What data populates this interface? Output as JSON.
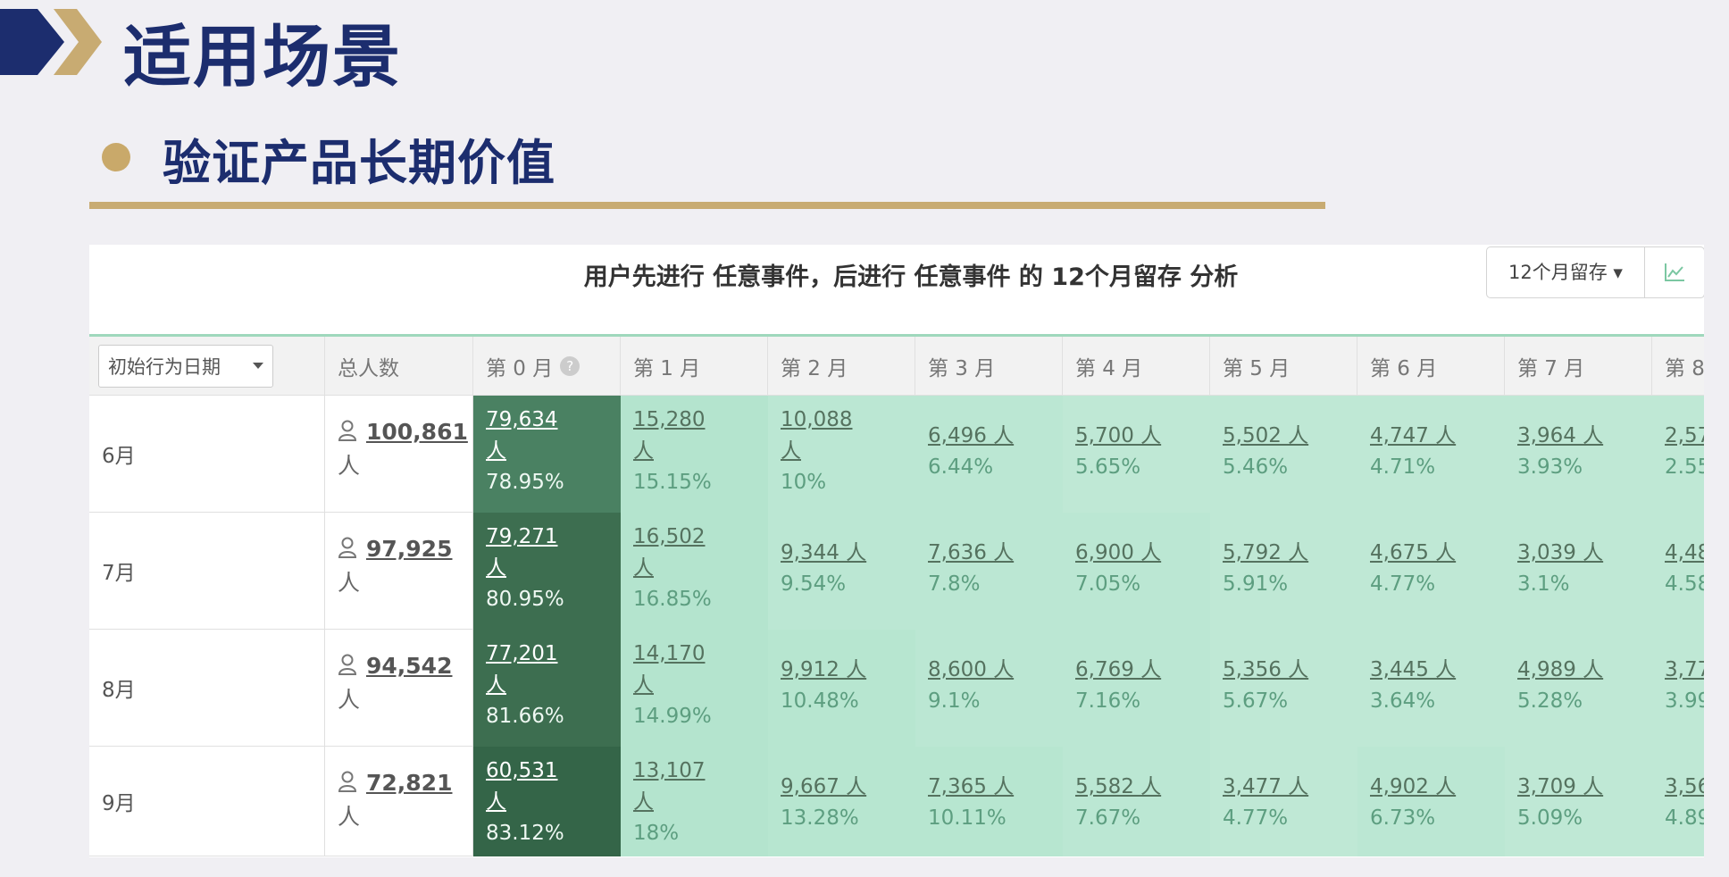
{
  "slide": {
    "title": "适用场景",
    "subtitle": "验证产品长期价值"
  },
  "colors": {
    "navy": "#1c2d6e",
    "gold": "#c8ab72",
    "green_dark": "#3d6e4f",
    "green_light": "#b4e4cf"
  },
  "panel": {
    "title": "用户先进行 任意事件，后进行 任意事件 的 12个月留存 分析",
    "range_label": "12个月留存 ▾",
    "chart_icon": "line-chart-icon",
    "date_select": "初始行为日期",
    "help_icon": "?"
  },
  "table": {
    "headers": [
      "总人数",
      "第 0 月",
      "第 1 月",
      "第 2 月",
      "第 3 月",
      "第 4 月",
      "第 5 月",
      "第 6 月",
      "第 7 月",
      "第 8"
    ],
    "rows": [
      {
        "label": "6月",
        "total": "100,861",
        "unit": "人",
        "cells": [
          {
            "n": "79,634",
            "p": "78.95%",
            "r": 0.7895
          },
          {
            "n": "15,280",
            "p": "15.15%",
            "r": 0.1515
          },
          {
            "n": "10,088",
            "p": "10%",
            "r": 0.1
          },
          {
            "n": "6,496 人",
            "p": "6.44%",
            "r": 0.0644
          },
          {
            "n": "5,700 人",
            "p": "5.65%",
            "r": 0.0565
          },
          {
            "n": "5,502 人",
            "p": "5.46%",
            "r": 0.0546
          },
          {
            "n": "4,747 人",
            "p": "4.71%",
            "r": 0.0471
          },
          {
            "n": "3,964 人",
            "p": "3.93%",
            "r": 0.0393
          },
          {
            "n": "2,57",
            "p": "2.55",
            "r": 0.0255
          }
        ]
      },
      {
        "label": "7月",
        "total": "97,925",
        "unit": "人",
        "cells": [
          {
            "n": "79,271",
            "p": "80.95%",
            "r": 0.8095
          },
          {
            "n": "16,502",
            "p": "16.85%",
            "r": 0.1685
          },
          {
            "n": "9,344 人",
            "p": "9.54%",
            "r": 0.0954
          },
          {
            "n": "7,636 人",
            "p": "7.8%",
            "r": 0.078
          },
          {
            "n": "6,900 人",
            "p": "7.05%",
            "r": 0.0705
          },
          {
            "n": "5,792 人",
            "p": "5.91%",
            "r": 0.0591
          },
          {
            "n": "4,675 人",
            "p": "4.77%",
            "r": 0.0477
          },
          {
            "n": "3,039 人",
            "p": "3.1%",
            "r": 0.031
          },
          {
            "n": "4,48",
            "p": "4.58",
            "r": 0.0458
          }
        ]
      },
      {
        "label": "8月",
        "total": "94,542",
        "unit": "人",
        "cells": [
          {
            "n": "77,201",
            "p": "81.66%",
            "r": 0.8166
          },
          {
            "n": "14,170",
            "p": "14.99%",
            "r": 0.1499
          },
          {
            "n": "9,912 人",
            "p": "10.48%",
            "r": 0.1048
          },
          {
            "n": "8,600 人",
            "p": "9.1%",
            "r": 0.091
          },
          {
            "n": "6,769 人",
            "p": "7.16%",
            "r": 0.0716
          },
          {
            "n": "5,356 人",
            "p": "5.67%",
            "r": 0.0567
          },
          {
            "n": "3,445 人",
            "p": "3.64%",
            "r": 0.0364
          },
          {
            "n": "4,989 人",
            "p": "5.28%",
            "r": 0.0528
          },
          {
            "n": "3,77",
            "p": "3.99",
            "r": 0.0399
          }
        ]
      },
      {
        "label": "9月",
        "total": "72,821",
        "unit": "人",
        "cells": [
          {
            "n": "60,531",
            "p": "83.12%",
            "r": 0.8312
          },
          {
            "n": "13,107",
            "p": "18%",
            "r": 0.18
          },
          {
            "n": "9,667 人",
            "p": "13.28%",
            "r": 0.1328
          },
          {
            "n": "7,365 人",
            "p": "10.11%",
            "r": 0.1011
          },
          {
            "n": "5,582 人",
            "p": "7.67%",
            "r": 0.0767
          },
          {
            "n": "3,477 人",
            "p": "4.77%",
            "r": 0.0477
          },
          {
            "n": "4,902 人",
            "p": "6.73%",
            "r": 0.0673
          },
          {
            "n": "3,709 人",
            "p": "5.09%",
            "r": 0.0509
          },
          {
            "n": "3,56",
            "p": "4.89",
            "r": 0.0489
          }
        ]
      }
    ]
  }
}
